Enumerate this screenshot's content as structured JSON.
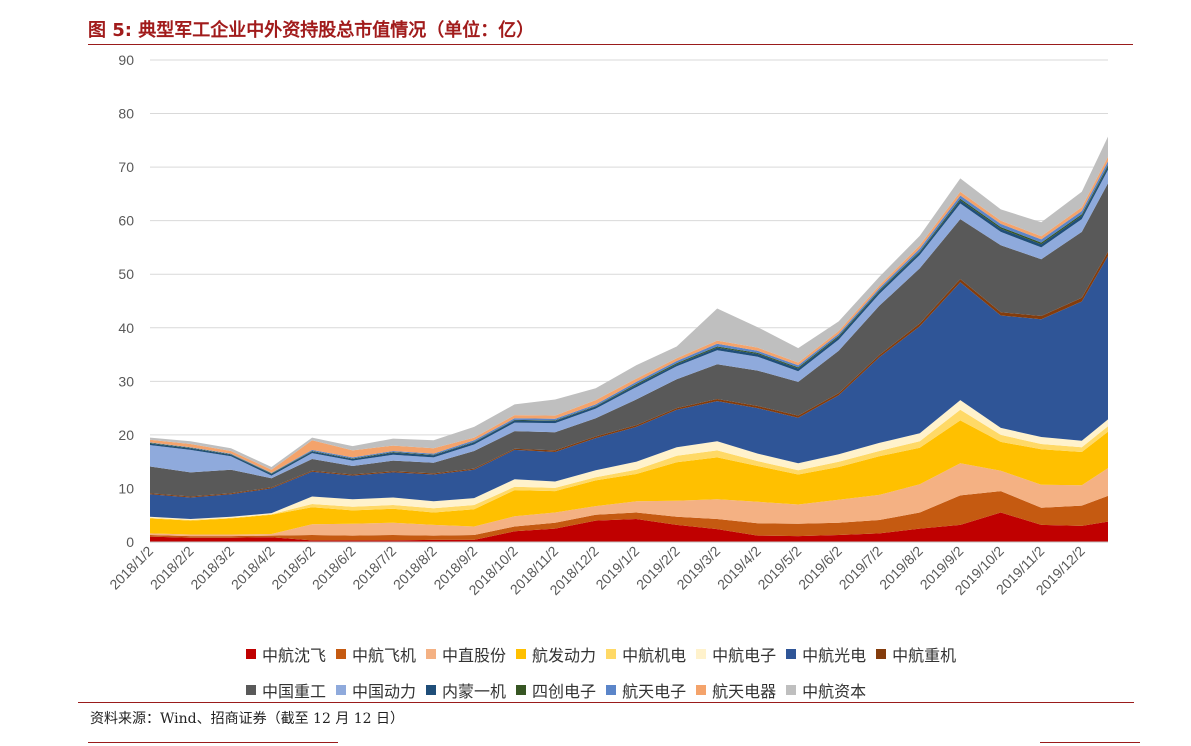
{
  "header": {
    "title": "图 5: 典型军工企业中外资持股总市值情况（单位：亿）"
  },
  "footer": {
    "source": "资料来源：Wind、招商证券（截至 12 月 12 日）"
  },
  "chart_data": {
    "type": "area",
    "stacked": true,
    "grid": true,
    "legend_position": "bottom",
    "ylim": [
      0,
      90
    ],
    "yticks": [
      0,
      10,
      20,
      30,
      40,
      50,
      60,
      70,
      80,
      90
    ],
    "xlabel": "",
    "ylabel": "",
    "x_tick_labels": [
      "2018/1/2",
      "2018/2/2",
      "2018/3/2",
      "2018/4/2",
      "2018/5/2",
      "2018/6/2",
      "2018/7/2",
      "2018/8/2",
      "2018/9/2",
      "2018/10/2",
      "2018/11/2",
      "2018/12/2",
      "2019/1/2",
      "2019/2/2",
      "2019/3/2",
      "2019/4/2",
      "2019/5/2",
      "2019/6/2",
      "2019/7/2",
      "2019/8/2",
      "2019/9/2",
      "2019/10/2",
      "2019/11/2",
      "2019/12/2"
    ],
    "x": [
      "2018/1/2",
      "2018/2/2",
      "2018/3/2",
      "2018/4/2",
      "2018/5/2",
      "2018/6/2",
      "2018/7/2",
      "2018/8/2",
      "2018/9/2",
      "2018/10/2",
      "2018/11/2",
      "2018/12/2",
      "2019/1/2",
      "2019/2/2",
      "2019/3/2",
      "2019/4/2",
      "2019/5/2",
      "2019/6/2",
      "2019/7/2",
      "2019/8/2",
      "2019/9/2",
      "2019/10/2",
      "2019/11/2",
      "2019/12/2",
      "2019/12/12"
    ],
    "series": [
      {
        "name": "中航沈飞",
        "color": "#c00000",
        "values": [
          1.0,
          0.8,
          0.8,
          0.9,
          0.3,
          0.3,
          0.3,
          0.4,
          0.4,
          2.0,
          2.5,
          4.0,
          4.3,
          3.2,
          2.4,
          1.2,
          1.1,
          1.3,
          1.6,
          2.5,
          3.2,
          5.5,
          3.2,
          3.0,
          3.8
        ]
      },
      {
        "name": "中航飞机",
        "color": "#c55a11",
        "values": [
          0.3,
          0.3,
          0.3,
          0.3,
          1.0,
          0.9,
          1.0,
          0.8,
          0.9,
          0.9,
          1.1,
          1.1,
          1.2,
          1.5,
          1.9,
          2.3,
          2.3,
          2.3,
          2.5,
          3.0,
          5.5,
          4.0,
          3.2,
          3.8,
          4.8
        ]
      },
      {
        "name": "中直股份",
        "color": "#f4b183",
        "values": [
          0.3,
          0.3,
          0.3,
          0.3,
          2.0,
          2.2,
          2.3,
          2.0,
          1.6,
          1.9,
          1.9,
          1.6,
          2.1,
          3.0,
          3.7,
          4.0,
          3.6,
          4.3,
          4.7,
          5.3,
          6.0,
          3.8,
          4.3,
          3.8,
          5.2
        ]
      },
      {
        "name": "航发动力",
        "color": "#ffc000",
        "values": [
          2.8,
          2.6,
          3.0,
          3.6,
          3.2,
          2.5,
          2.6,
          2.3,
          3.2,
          4.9,
          4.0,
          4.8,
          5.1,
          7.2,
          7.8,
          6.7,
          5.6,
          6.1,
          7.2,
          6.8,
          8.0,
          5.4,
          6.6,
          6.2,
          6.8
        ]
      },
      {
        "name": "中航机电",
        "color": "#ffd966",
        "values": [
          0.1,
          0.1,
          0.1,
          0.1,
          0.6,
          0.7,
          0.7,
          0.8,
          0.8,
          0.6,
          0.6,
          0.6,
          0.8,
          1.2,
          1.3,
          0.9,
          0.8,
          1.0,
          1.0,
          1.2,
          2.0,
          1.3,
          1.0,
          0.9,
          1.0
        ]
      },
      {
        "name": "中航电子",
        "color": "#fff2cc",
        "values": [
          0.2,
          0.2,
          0.2,
          0.2,
          1.4,
          1.4,
          1.4,
          1.3,
          1.3,
          1.4,
          1.2,
          1.3,
          1.5,
          1.6,
          1.7,
          1.4,
          1.3,
          1.4,
          1.5,
          1.5,
          1.8,
          1.3,
          1.3,
          1.2,
          1.3
        ]
      },
      {
        "name": "中航光电",
        "color": "#2f5597",
        "values": [
          4.2,
          4.0,
          4.2,
          4.6,
          4.6,
          4.4,
          4.7,
          5.0,
          5.3,
          5.5,
          5.5,
          6.0,
          6.5,
          7.0,
          7.5,
          8.5,
          8.5,
          11.0,
          16.0,
          20.0,
          22.0,
          21.0,
          22.0,
          26.0,
          30.5
        ]
      },
      {
        "name": "中航重机",
        "color": "#843c0c",
        "values": [
          0.2,
          0.2,
          0.2,
          0.2,
          0.2,
          0.2,
          0.2,
          0.2,
          0.2,
          0.2,
          0.3,
          0.3,
          0.3,
          0.3,
          0.4,
          0.4,
          0.4,
          0.4,
          0.4,
          0.5,
          0.6,
          0.6,
          0.6,
          0.7,
          0.8
        ]
      },
      {
        "name": "中国重工",
        "color": "#595959",
        "values": [
          5.0,
          4.5,
          4.4,
          1.7,
          2.2,
          1.6,
          2.0,
          2.0,
          3.3,
          3.3,
          3.4,
          3.4,
          4.8,
          5.4,
          6.5,
          6.6,
          6.3,
          7.9,
          9.2,
          10.3,
          11.2,
          12.5,
          10.6,
          12.3,
          12.8
        ]
      },
      {
        "name": "中国动力",
        "color": "#8faadc",
        "values": [
          4.0,
          4.2,
          2.5,
          0.5,
          1.1,
          1.0,
          1.1,
          1.0,
          1.2,
          1.6,
          1.7,
          1.8,
          2.3,
          2.4,
          2.6,
          2.6,
          2.0,
          2.1,
          2.2,
          2.5,
          2.9,
          2.5,
          2.2,
          2.4,
          2.5
        ]
      },
      {
        "name": "内蒙一机",
        "color": "#1f4e79",
        "values": [
          0.3,
          0.3,
          0.3,
          0.3,
          0.3,
          0.3,
          0.4,
          0.4,
          0.4,
          0.4,
          0.4,
          0.4,
          0.4,
          0.4,
          0.5,
          0.5,
          0.5,
          0.5,
          0.5,
          0.5,
          0.6,
          0.6,
          0.6,
          0.6,
          0.6
        ]
      },
      {
        "name": "四创电子",
        "color": "#375623",
        "values": [
          0.1,
          0.1,
          0.1,
          0.1,
          0.1,
          0.1,
          0.1,
          0.1,
          0.1,
          0.1,
          0.1,
          0.1,
          0.2,
          0.2,
          0.2,
          0.2,
          0.2,
          0.2,
          0.2,
          0.2,
          0.3,
          0.3,
          0.3,
          0.3,
          0.3
        ]
      },
      {
        "name": "航天电子",
        "color": "#5b85c9",
        "values": [
          0.1,
          0.1,
          0.1,
          0.1,
          0.2,
          0.2,
          0.2,
          0.2,
          0.3,
          0.3,
          0.3,
          0.3,
          0.4,
          0.4,
          0.5,
          0.4,
          0.4,
          0.4,
          0.4,
          0.5,
          0.6,
          0.6,
          0.6,
          0.6,
          0.7
        ]
      },
      {
        "name": "航天电器",
        "color": "#f4a36b",
        "values": [
          0.5,
          0.6,
          0.5,
          0.6,
          1.8,
          1.3,
          1.0,
          1.0,
          0.5,
          0.6,
          0.6,
          0.8,
          0.6,
          0.5,
          0.6,
          0.6,
          0.5,
          0.5,
          0.5,
          0.6,
          0.7,
          0.6,
          0.6,
          0.7,
          0.8
        ]
      },
      {
        "name": "中航资本",
        "color": "#bfbfbf",
        "values": [
          0.4,
          0.5,
          0.5,
          0.5,
          0.5,
          0.8,
          1.3,
          1.5,
          2.0,
          2.0,
          3.0,
          2.2,
          2.5,
          2.2,
          6.0,
          3.8,
          2.7,
          1.8,
          1.6,
          1.8,
          2.5,
          2.1,
          2.6,
          2.9,
          3.8
        ]
      }
    ]
  }
}
